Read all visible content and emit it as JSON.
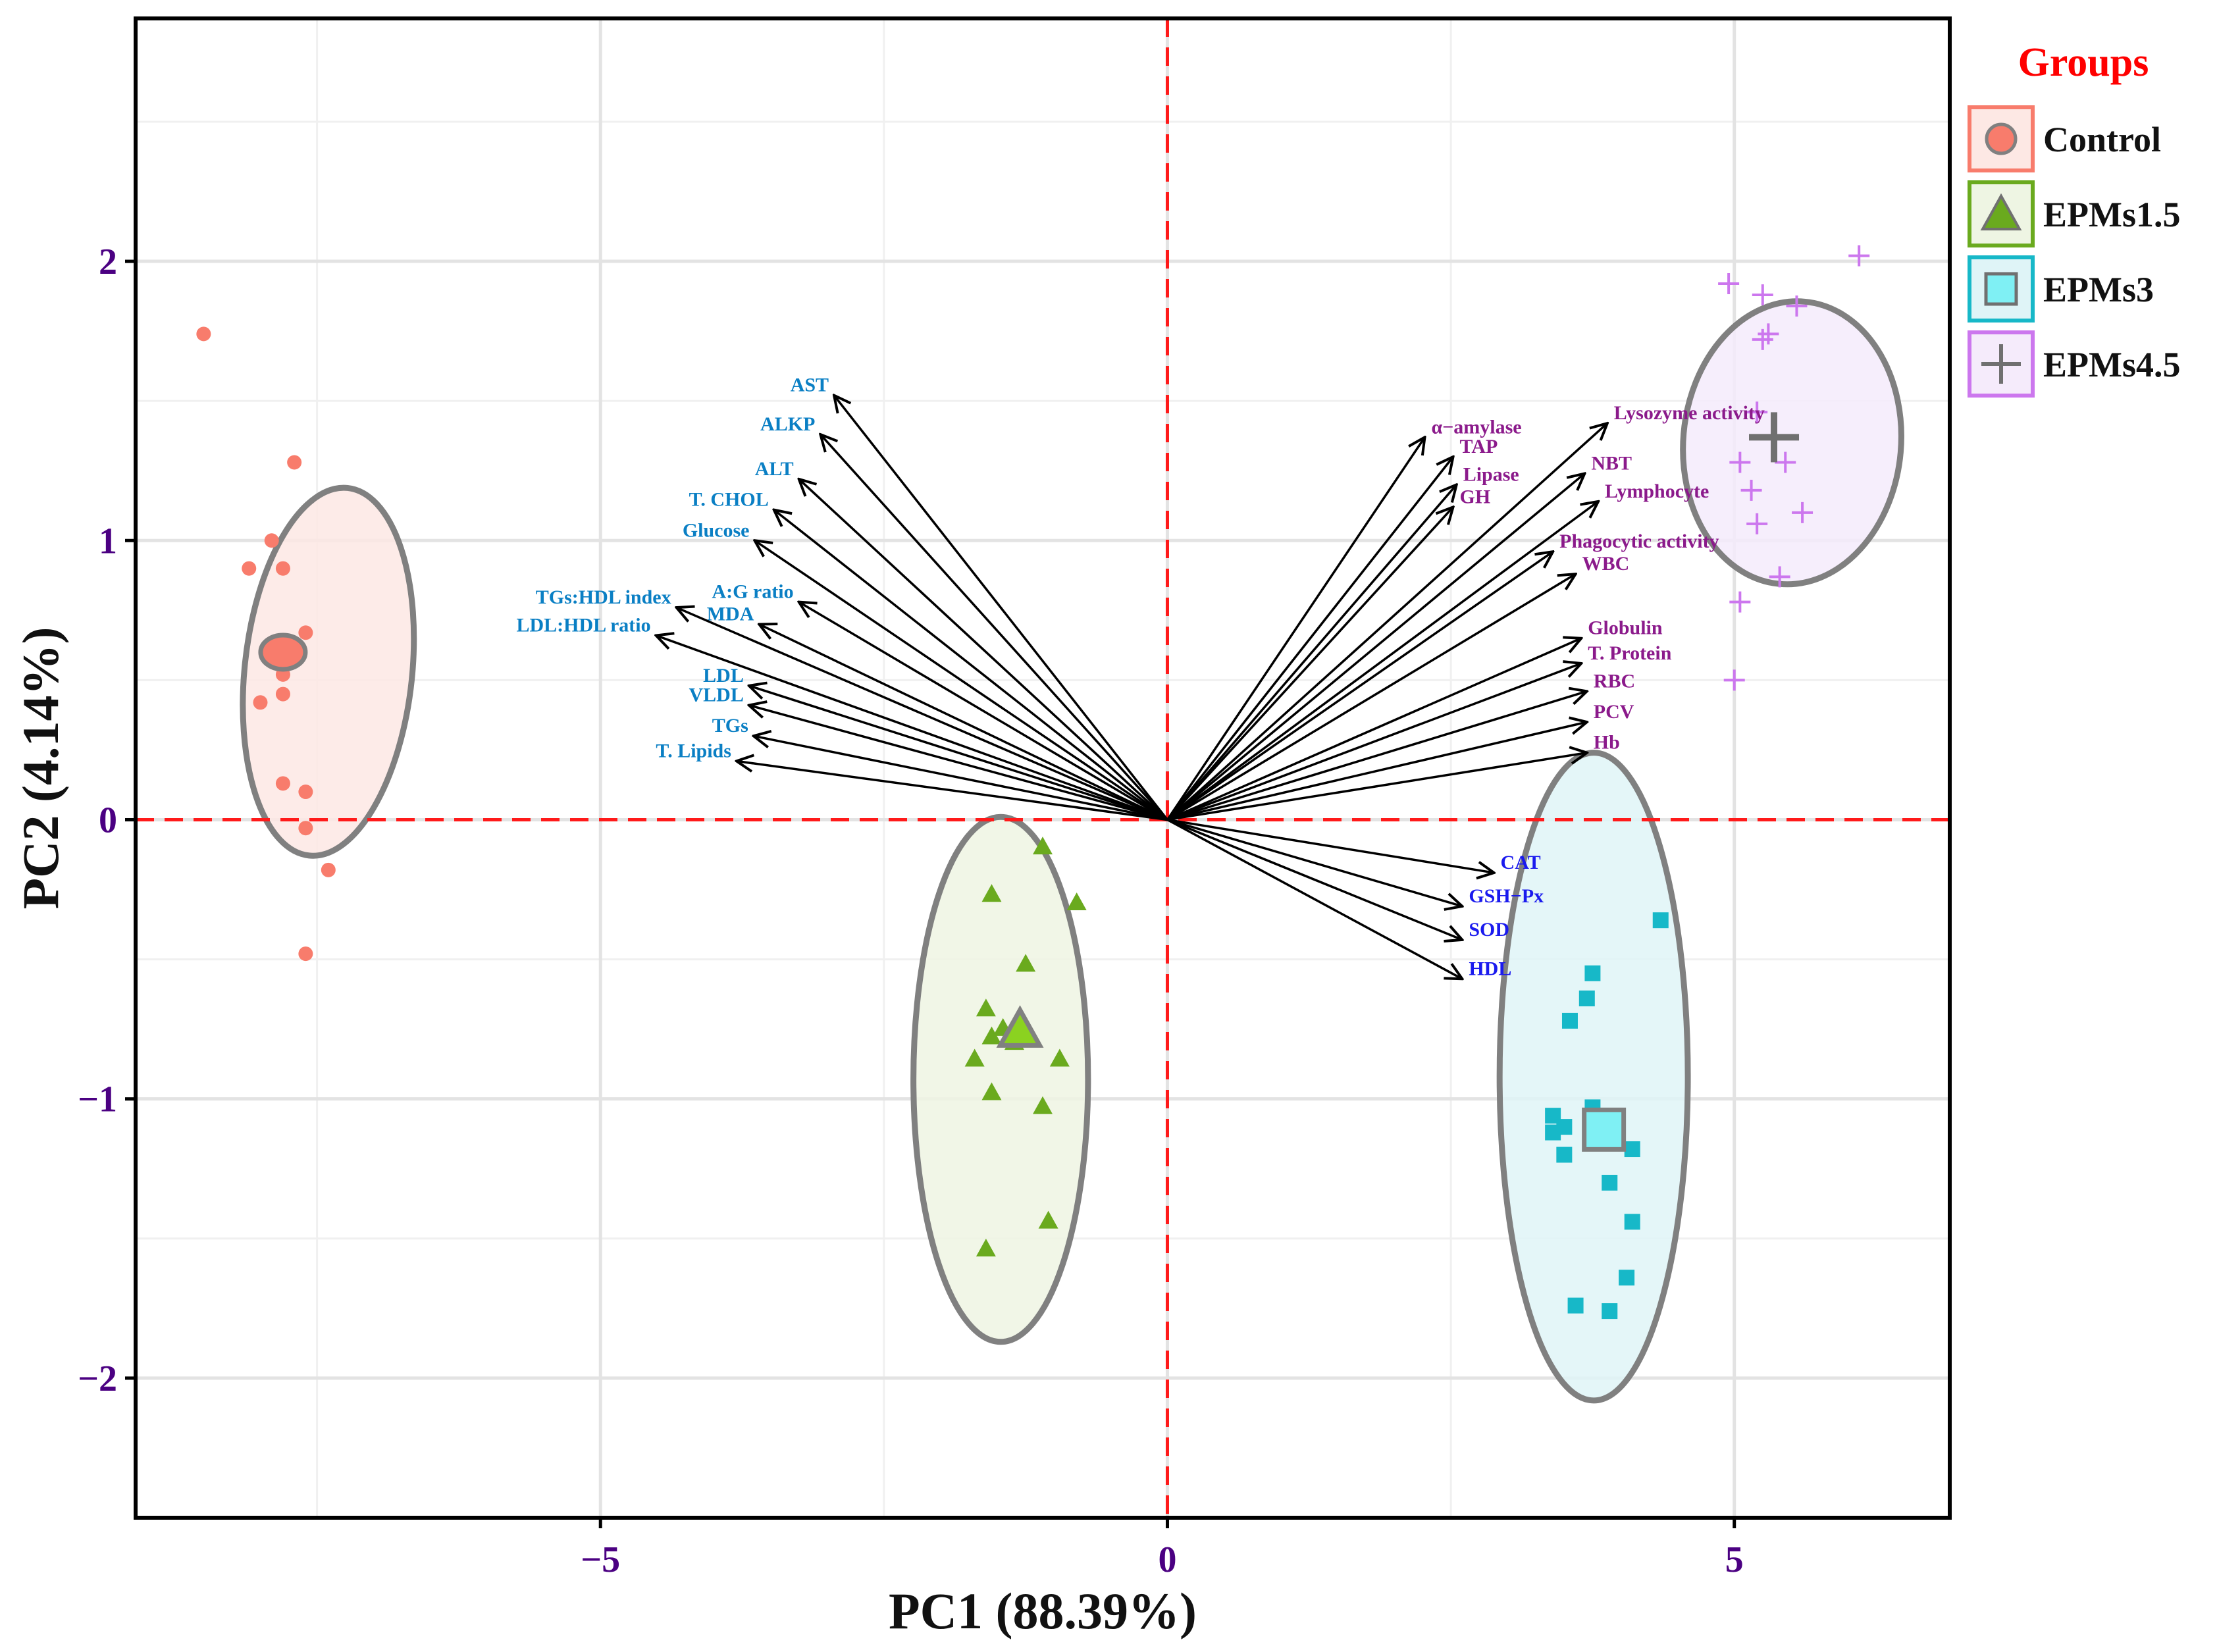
{
  "chart_data": {
    "type": "scatter",
    "subtype": "pca-biplot",
    "xlabel": "PC1 (88.39%)",
    "ylabel": "PC2 (4.14%)",
    "xlim": [
      -9.1,
      6.9
    ],
    "ylim": [
      -2.5,
      2.87
    ],
    "x_ticks": [
      -5,
      0,
      5
    ],
    "x_tick_labels": [
      "−5",
      "0",
      "5"
    ],
    "y_ticks": [
      -2,
      -1,
      0,
      1,
      2
    ],
    "y_tick_labels": [
      "−2",
      "−1",
      "0",
      "1",
      "2"
    ],
    "grid": true,
    "legend": {
      "title": "Groups",
      "position": "right",
      "entries": [
        "Control",
        "EPMs1.5",
        "EPMs3",
        "EPMs4.5"
      ]
    },
    "groups": [
      {
        "name": "Control",
        "marker": "circle",
        "color": "#f87c6c",
        "fill": "#fde8e4",
        "centroid": [
          -7.8,
          0.6
        ],
        "ellipse": {
          "cx": -7.4,
          "cy": 0.53,
          "rx": 1.63,
          "ry": 0.3,
          "angle": 84
        },
        "points": [
          [
            -8.5,
            1.74
          ],
          [
            -7.7,
            1.28
          ],
          [
            -7.9,
            1.0
          ],
          [
            -8.1,
            0.9
          ],
          [
            -7.8,
            0.9
          ],
          [
            -7.6,
            0.67
          ],
          [
            -7.7,
            0.57
          ],
          [
            -7.8,
            0.52
          ],
          [
            -7.8,
            0.45
          ],
          [
            -8.0,
            0.42
          ],
          [
            -7.8,
            0.13
          ],
          [
            -7.6,
            0.1
          ],
          [
            -7.6,
            -0.03
          ],
          [
            -7.4,
            -0.18
          ],
          [
            -7.6,
            -0.48
          ]
        ]
      },
      {
        "name": "EPMs1.5",
        "marker": "triangle",
        "color": "#6aaa1e",
        "fill": "#eef5e3",
        "centroid": [
          -1.3,
          -0.76
        ],
        "ellipse": {
          "cx": -1.47,
          "cy": -0.93,
          "rx": 0.77,
          "ry": 0.94,
          "angle": 0
        },
        "points": [
          [
            -1.1,
            -0.1
          ],
          [
            -0.8,
            -0.3
          ],
          [
            -1.55,
            -0.27
          ],
          [
            -1.25,
            -0.52
          ],
          [
            -1.6,
            -0.68
          ],
          [
            -1.55,
            -0.78
          ],
          [
            -1.45,
            -0.75
          ],
          [
            -1.35,
            -0.8
          ],
          [
            -1.7,
            -0.86
          ],
          [
            -0.95,
            -0.86
          ],
          [
            -1.55,
            -0.98
          ],
          [
            -1.1,
            -1.03
          ],
          [
            -1.05,
            -1.44
          ],
          [
            -1.6,
            -1.54
          ]
        ]
      },
      {
        "name": "EPMs3",
        "marker": "square",
        "color": "#17b8c8",
        "fill": "#dff4f7",
        "centroid": [
          3.85,
          -1.11
        ],
        "ellipse": {
          "cx": 3.76,
          "cy": -0.92,
          "rx": 0.83,
          "ry": 1.16,
          "angle": 0
        },
        "points": [
          [
            4.35,
            -0.36
          ],
          [
            3.75,
            -0.55
          ],
          [
            3.7,
            -0.64
          ],
          [
            3.55,
            -0.72
          ],
          [
            3.4,
            -1.06
          ],
          [
            3.5,
            -1.1
          ],
          [
            3.4,
            -1.12
          ],
          [
            3.75,
            -1.03
          ],
          [
            3.5,
            -1.2
          ],
          [
            4.1,
            -1.18
          ],
          [
            3.9,
            -1.3
          ],
          [
            4.1,
            -1.44
          ],
          [
            4.05,
            -1.64
          ],
          [
            3.6,
            -1.74
          ],
          [
            3.9,
            -1.76
          ]
        ]
      },
      {
        "name": "EPMs4.5",
        "marker": "plus",
        "color": "#cc77ee",
        "fill": "#f5ebfb",
        "centroid": [
          5.35,
          1.37
        ],
        "ellipse": {
          "cx": 5.51,
          "cy": 1.35,
          "rx": 1.25,
          "ry": 0.39,
          "angle": 85
        },
        "points": [
          [
            6.1,
            2.02
          ],
          [
            4.95,
            1.92
          ],
          [
            5.25,
            1.88
          ],
          [
            5.55,
            1.84
          ],
          [
            5.25,
            1.72
          ],
          [
            5.3,
            1.74
          ],
          [
            5.2,
            1.46
          ],
          [
            5.05,
            1.28
          ],
          [
            5.45,
            1.28
          ],
          [
            5.15,
            1.18
          ],
          [
            5.6,
            1.1
          ],
          [
            5.2,
            1.06
          ],
          [
            5.05,
            0.78
          ],
          [
            5.4,
            0.87
          ],
          [
            5.0,
            0.5
          ]
        ]
      }
    ],
    "loadings": [
      {
        "label": "AST",
        "x": -2.94,
        "y": 1.52,
        "color": "#0a7fc4"
      },
      {
        "label": "ALKP",
        "x": -3.06,
        "y": 1.38,
        "color": "#0a7fc4"
      },
      {
        "label": "ALT",
        "x": -3.25,
        "y": 1.22,
        "color": "#0a7fc4"
      },
      {
        "label": "T. CHOL",
        "x": -3.47,
        "y": 1.11,
        "color": "#0a7fc4"
      },
      {
        "label": "Glucose",
        "x": -3.64,
        "y": 1.0,
        "color": "#0a7fc4"
      },
      {
        "label": "A:G ratio",
        "x": -3.25,
        "y": 0.78,
        "color": "#0a7fc4"
      },
      {
        "label": "MDA",
        "x": -3.6,
        "y": 0.7,
        "color": "#0a7fc4"
      },
      {
        "label": "TGs:HDL index",
        "x": -4.33,
        "y": 0.76,
        "color": "#0a7fc4"
      },
      {
        "label": "LDL:HDL ratio",
        "x": -4.51,
        "y": 0.66,
        "color": "#0a7fc4"
      },
      {
        "label": "LDL",
        "x": -3.69,
        "y": 0.48,
        "color": "#0a7fc4"
      },
      {
        "label": "VLDL",
        "x": -3.69,
        "y": 0.41,
        "color": "#0a7fc4"
      },
      {
        "label": "TGs",
        "x": -3.65,
        "y": 0.3,
        "color": "#0a7fc4"
      },
      {
        "label": "T. Lipids",
        "x": -3.8,
        "y": 0.21,
        "color": "#0a7fc4"
      },
      {
        "label": "α−amylase",
        "x": 2.27,
        "y": 1.37,
        "color": "#8b1a8b"
      },
      {
        "label": "TAP",
        "x": 2.52,
        "y": 1.3,
        "color": "#8b1a8b"
      },
      {
        "label": "Lipase",
        "x": 2.55,
        "y": 1.2,
        "color": "#8b1a8b"
      },
      {
        "label": "GH",
        "x": 2.52,
        "y": 1.12,
        "color": "#8b1a8b"
      },
      {
        "label": "Lysozyme activity",
        "x": 3.88,
        "y": 1.42,
        "color": "#8b1a8b"
      },
      {
        "label": "NBT",
        "x": 3.68,
        "y": 1.24,
        "color": "#8b1a8b"
      },
      {
        "label": "Lymphocyte",
        "x": 3.8,
        "y": 1.14,
        "color": "#8b1a8b"
      },
      {
        "label": "Phagocytic activity",
        "x": 3.4,
        "y": 0.96,
        "color": "#8b1a8b"
      },
      {
        "label": "WBC",
        "x": 3.6,
        "y": 0.88,
        "color": "#8b1a8b"
      },
      {
        "label": "Globulin",
        "x": 3.65,
        "y": 0.65,
        "color": "#8b1a8b"
      },
      {
        "label": "T. Protein",
        "x": 3.65,
        "y": 0.56,
        "color": "#8b1a8b"
      },
      {
        "label": "RBC",
        "x": 3.7,
        "y": 0.46,
        "color": "#8b1a8b"
      },
      {
        "label": "PCV",
        "x": 3.7,
        "y": 0.35,
        "color": "#8b1a8b"
      },
      {
        "label": "Hb",
        "x": 3.7,
        "y": 0.24,
        "color": "#8b1a8b"
      },
      {
        "label": "CAT",
        "x": 2.88,
        "y": -0.19,
        "color": "#1a1aee"
      },
      {
        "label": "GSH−Px",
        "x": 2.6,
        "y": -0.31,
        "color": "#1a1aee"
      },
      {
        "label": "SOD",
        "x": 2.6,
        "y": -0.43,
        "color": "#1a1aee"
      },
      {
        "label": "HDL",
        "x": 2.6,
        "y": -0.57,
        "color": "#1a1aee"
      }
    ]
  }
}
